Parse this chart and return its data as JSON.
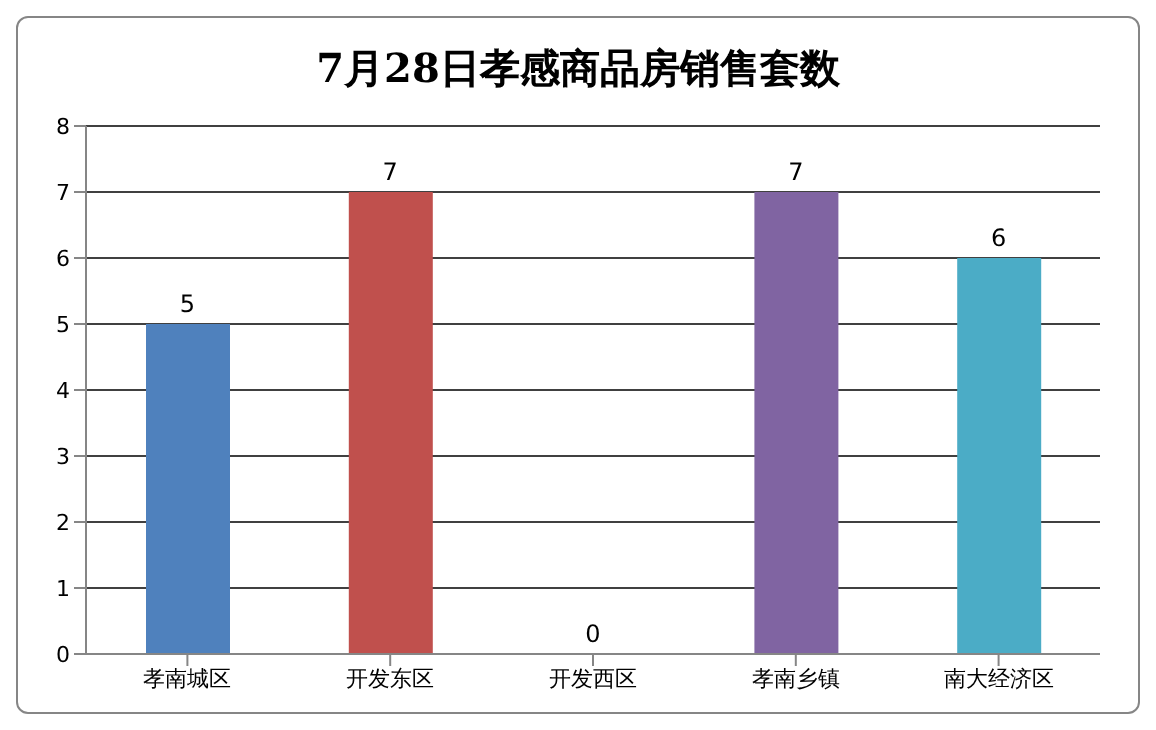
{
  "chart_data": {
    "type": "bar",
    "title": "7月28日孝感商品房销售套数",
    "categories": [
      "孝南城区",
      "开发东区",
      "开发西区",
      "孝南乡镇",
      "南大经济区"
    ],
    "values": [
      5,
      7,
      0,
      7,
      6
    ],
    "colors": [
      "#4f81bd",
      "#c0504d",
      "#9bbb59",
      "#8064a2",
      "#4bacc6"
    ],
    "ylim": [
      0,
      8
    ],
    "yticks": [
      0,
      1,
      2,
      3,
      4,
      5,
      6,
      7,
      8
    ],
    "grid": "y",
    "data_labels": true
  }
}
